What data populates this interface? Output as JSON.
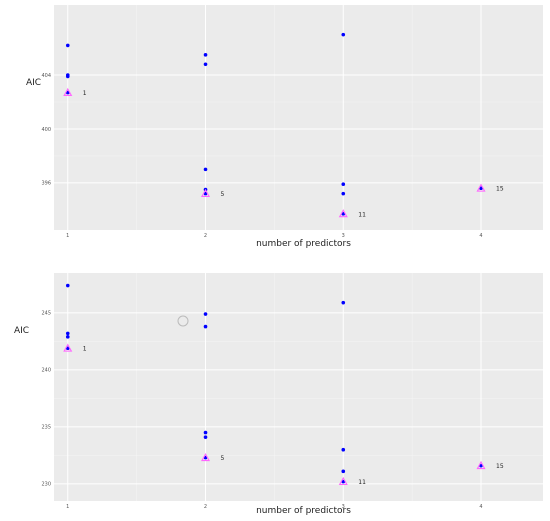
{
  "chart_data": [
    {
      "type": "scatter",
      "title": "",
      "xlabel": "number of predictors",
      "ylabel": "AIC",
      "xlim": [
        0.9,
        4.45
      ],
      "ylim": [
        392.5,
        409.2
      ],
      "x_ticks": [
        1,
        2,
        3,
        4
      ],
      "y_ticks": [
        396,
        400,
        404
      ],
      "grid": true,
      "legend": "none",
      "colors": {
        "panel": "#ebebeb",
        "grid_major": "#ffffff",
        "grid_minor": "#f4f4f4",
        "point": "#0000ff",
        "highlight": "#ff66ff"
      },
      "points": [
        {
          "x": 1,
          "y": 406.2
        },
        {
          "x": 1,
          "y": 404.0
        },
        {
          "x": 1,
          "y": 403.9
        },
        {
          "x": 1,
          "y": 402.7
        },
        {
          "x": 2,
          "y": 405.5
        },
        {
          "x": 2,
          "y": 404.8
        },
        {
          "x": 2,
          "y": 397.0
        },
        {
          "x": 2,
          "y": 395.5
        },
        {
          "x": 2,
          "y": 395.2
        },
        {
          "x": 3,
          "y": 407.0
        },
        {
          "x": 3,
          "y": 395.9
        },
        {
          "x": 3,
          "y": 395.2
        },
        {
          "x": 3,
          "y": 393.7
        },
        {
          "x": 4,
          "y": 395.6
        }
      ],
      "highlighted": [
        {
          "x": 1,
          "y": 402.7,
          "label": "1"
        },
        {
          "x": 2,
          "y": 395.2,
          "label": "5"
        },
        {
          "x": 3,
          "y": 393.7,
          "label": "11"
        },
        {
          "x": 4,
          "y": 395.6,
          "label": "15"
        }
      ]
    },
    {
      "type": "scatter",
      "title": "",
      "xlabel": "number of predictors",
      "ylabel": "AIC",
      "xlim": [
        0.9,
        4.45
      ],
      "ylim": [
        228.5,
        248.5
      ],
      "x_ticks": [
        1,
        2,
        3,
        4
      ],
      "y_ticks": [
        230,
        235,
        240,
        245
      ],
      "grid": true,
      "legend": "none",
      "colors": {
        "panel": "#ebebeb",
        "grid_major": "#ffffff",
        "grid_minor": "#f4f4f4",
        "point": "#0000ff",
        "highlight": "#ff66ff"
      },
      "points": [
        {
          "x": 1,
          "y": 247.4
        },
        {
          "x": 1,
          "y": 243.2
        },
        {
          "x": 1,
          "y": 242.9
        },
        {
          "x": 1,
          "y": 241.9
        },
        {
          "x": 2,
          "y": 244.9
        },
        {
          "x": 2,
          "y": 243.8
        },
        {
          "x": 2,
          "y": 234.5
        },
        {
          "x": 2,
          "y": 234.1
        },
        {
          "x": 2,
          "y": 232.3
        },
        {
          "x": 3,
          "y": 245.9
        },
        {
          "x": 3,
          "y": 233.0
        },
        {
          "x": 3,
          "y": 231.1
        },
        {
          "x": 3,
          "y": 230.2
        },
        {
          "x": 4,
          "y": 231.6
        }
      ],
      "highlighted": [
        {
          "x": 1,
          "y": 241.9,
          "label": "1"
        },
        {
          "x": 2,
          "y": 232.3,
          "label": "5"
        },
        {
          "x": 3,
          "y": 230.2,
          "label": "11"
        },
        {
          "x": 4,
          "y": 231.6,
          "label": "15"
        }
      ]
    }
  ]
}
